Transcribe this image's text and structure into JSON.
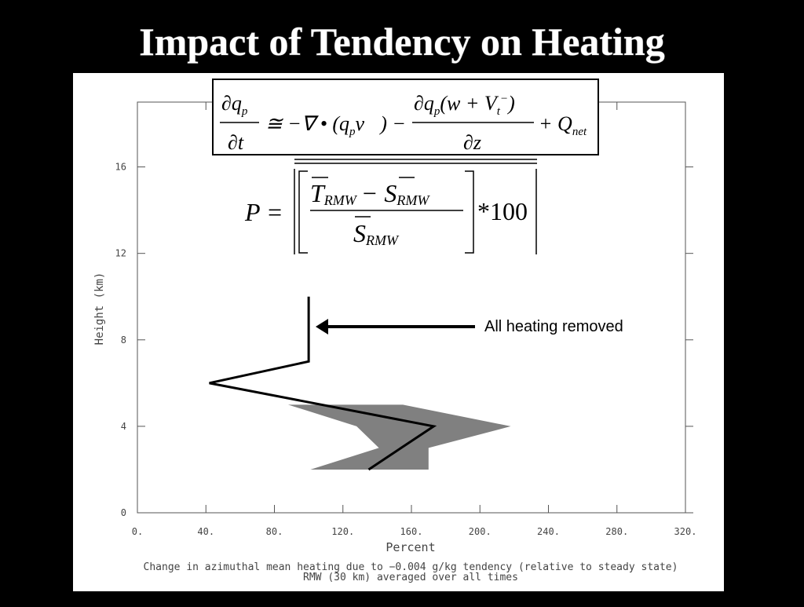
{
  "chart_data": {
    "type": "line",
    "title": "Impact of Tendency on Heating",
    "xlabel": "Percent",
    "ylabel": "Height (km)",
    "caption": [
      "Change in azimuthal mean heating due to −0.004 g/kg tendency (relative to steady state)",
      "RMW (30 km) averaged over all times"
    ],
    "xlim": [
      0,
      320
    ],
    "ylim": [
      0,
      19
    ],
    "xticks": [
      {
        "value": 0,
        "label": "0."
      },
      {
        "value": 40,
        "label": "40."
      },
      {
        "value": 80,
        "label": "80."
      },
      {
        "value": 120,
        "label": "120."
      },
      {
        "value": 160,
        "label": "160."
      },
      {
        "value": 200,
        "label": "200."
      },
      {
        "value": 240,
        "label": "240."
      },
      {
        "value": 280,
        "label": "280."
      },
      {
        "value": 320,
        "label": "320."
      }
    ],
    "yticks": [
      0,
      4,
      8,
      12,
      16
    ],
    "series": [
      {
        "color": "#000000",
        "x": [
          100,
          100,
          42,
          173,
          135
        ],
        "y": [
          10,
          7,
          6,
          4,
          2
        ]
      }
    ],
    "band": {
      "color": "#808080",
      "y": [
        2,
        3,
        4,
        5
      ],
      "low": [
        101,
        141,
        128,
        88
      ],
      "high": [
        170,
        170,
        218,
        155
      ]
    },
    "annotation": "All heating removed",
    "equation_1": [
      "∂q",
      "p",
      "∂t",
      "≅ −∇ • (q",
      "p",
      "v⃗) −",
      "∂q",
      "p",
      "(w + V",
      "t",
      "−",
      ")",
      "∂z",
      "+ Q",
      "net"
    ],
    "equation_2": [
      "P =",
      "T",
      "RMW",
      "− S",
      "RMW",
      "S",
      "RMW",
      "*100"
    ]
  }
}
